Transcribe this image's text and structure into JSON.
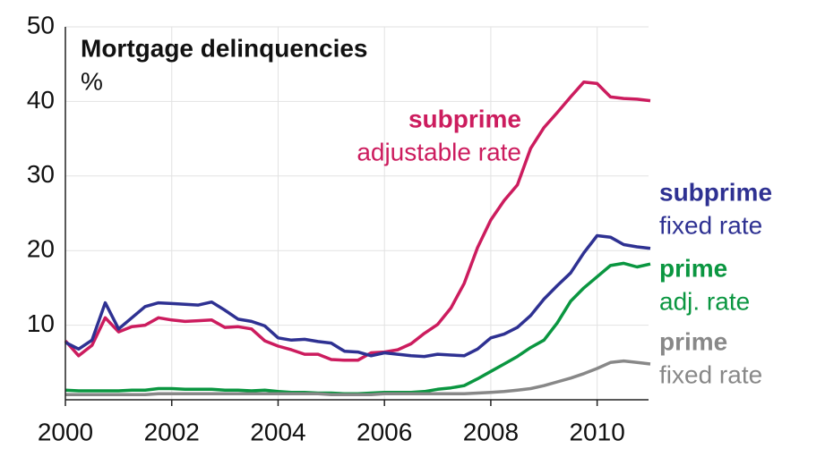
{
  "chart_data": {
    "type": "line",
    "title": "Mortgage delinquencies",
    "subtitle": "%",
    "x": [
      2000,
      2000.25,
      2000.5,
      2000.75,
      2001,
      2001.25,
      2001.5,
      2001.75,
      2002,
      2002.25,
      2002.5,
      2002.75,
      2003,
      2003.25,
      2003.5,
      2003.75,
      2004,
      2004.25,
      2004.5,
      2004.75,
      2005,
      2005.25,
      2005.5,
      2005.75,
      2006,
      2006.25,
      2006.5,
      2006.75,
      2007,
      2007.25,
      2007.5,
      2007.75,
      2008,
      2008.25,
      2008.5,
      2008.75,
      2009,
      2009.25,
      2009.5,
      2009.75,
      2010,
      2010.25,
      2010.5,
      2010.75,
      2011
    ],
    "xlim": [
      2000,
      2011
    ],
    "xticks": [
      2000,
      2002,
      2004,
      2006,
      2008,
      2010
    ],
    "ylim": [
      0,
      50
    ],
    "yticks": [
      10,
      20,
      30,
      40,
      50
    ],
    "grid": true,
    "series": [
      {
        "name": "subprime",
        "rate_type": "adjustable rate",
        "color": "#cc1c5e",
        "values": [
          7.9,
          5.9,
          7.3,
          11.0,
          9.1,
          9.8,
          10.0,
          11.0,
          10.7,
          10.5,
          10.6,
          10.7,
          9.7,
          9.8,
          9.5,
          7.9,
          7.2,
          6.7,
          6.1,
          6.1,
          5.4,
          5.3,
          5.3,
          6.3,
          6.4,
          6.7,
          7.5,
          8.9,
          10.1,
          12.3,
          15.6,
          20.4,
          24.1,
          26.7,
          28.8,
          33.7,
          36.5,
          38.5,
          40.6,
          42.6,
          42.4,
          40.6,
          40.4,
          40.3,
          40.1
        ]
      },
      {
        "name": "subprime",
        "rate_type": "fixed rate",
        "color": "#2e3192",
        "values": [
          7.7,
          6.8,
          8.0,
          13.0,
          9.5,
          11.0,
          12.5,
          13.0,
          12.9,
          12.8,
          12.7,
          13.1,
          12.0,
          10.8,
          10.5,
          9.9,
          8.3,
          8.0,
          8.1,
          7.8,
          7.6,
          6.5,
          6.4,
          5.9,
          6.3,
          6.1,
          5.9,
          5.8,
          6.1,
          6.0,
          5.9,
          6.8,
          8.3,
          8.8,
          9.7,
          11.3,
          13.5,
          15.3,
          17.0,
          19.7,
          22.0,
          21.8,
          20.8,
          20.5,
          20.3
        ]
      },
      {
        "name": "prime",
        "rate_type": "adj. rate",
        "color": "#0a9640",
        "values": [
          1.3,
          1.2,
          1.2,
          1.2,
          1.2,
          1.3,
          1.3,
          1.5,
          1.5,
          1.4,
          1.4,
          1.4,
          1.3,
          1.3,
          1.2,
          1.3,
          1.1,
          1.0,
          1.0,
          0.9,
          0.9,
          0.8,
          0.8,
          0.9,
          1.0,
          1.0,
          1.0,
          1.1,
          1.4,
          1.6,
          1.9,
          2.8,
          3.8,
          4.8,
          5.8,
          7.0,
          8.0,
          10.3,
          13.2,
          15.0,
          16.5,
          18.0,
          18.3,
          17.8,
          18.2
        ]
      },
      {
        "name": "prime",
        "rate_type": "fixed rate",
        "color": "#888888",
        "values": [
          0.7,
          0.7,
          0.7,
          0.7,
          0.7,
          0.7,
          0.7,
          0.8,
          0.8,
          0.8,
          0.8,
          0.8,
          0.8,
          0.8,
          0.8,
          0.8,
          0.8,
          0.8,
          0.8,
          0.8,
          0.7,
          0.7,
          0.7,
          0.7,
          0.8,
          0.8,
          0.8,
          0.8,
          0.8,
          0.8,
          0.8,
          0.9,
          1.0,
          1.1,
          1.3,
          1.5,
          1.9,
          2.4,
          2.9,
          3.5,
          4.2,
          5.0,
          5.2,
          5.0,
          4.8
        ]
      }
    ]
  }
}
